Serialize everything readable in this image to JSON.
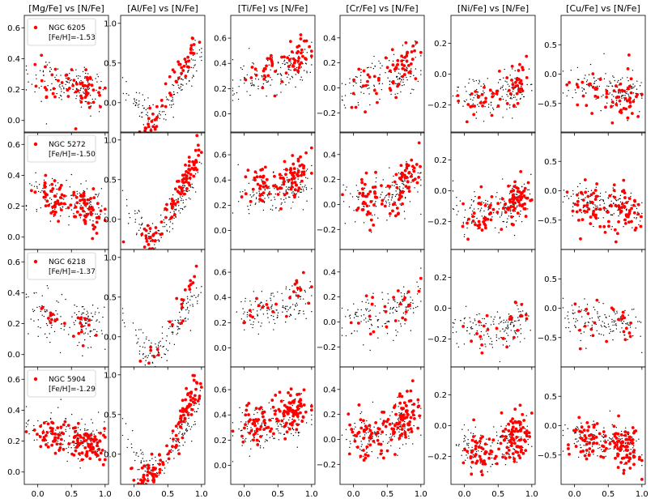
{
  "chart_data": {
    "type": "scatter",
    "layout": "4 rows x 6 columns grid of scatter panels",
    "xlim": [
      -0.2,
      1.05
    ],
    "xticks": [
      0.0,
      0.5,
      1.0
    ],
    "xtick_labels": [
      "0.0",
      "0.5",
      "1.0"
    ],
    "panel_titles": [
      "[Mg/Fe] vs [N/Fe]",
      "[Al/Fe] vs [N/Fe]",
      "[Ti/Fe] vs [N/Fe]",
      "[Cr/Fe] vs [N/Fe]",
      "[Ni/Fe] vs [N/Fe]",
      "[Cu/Fe] vs [N/Fe]"
    ],
    "series_styles": {
      "field": {
        "description": "field stars",
        "color": "#000000"
      },
      "cluster": {
        "description": "cluster stars",
        "color": "#ff0000"
      }
    },
    "rows": [
      {
        "cluster": "NGC 6205",
        "feh_label": "[Fe/H]=-1.53",
        "legend_position": "top-left"
      },
      {
        "cluster": "NGC 5272",
        "feh_label": "[Fe/H]=-1.50",
        "legend_position": "top-left"
      },
      {
        "cluster": "NGC 6218",
        "feh_label": "[Fe/H]=-1.37",
        "legend_position": "top-left"
      },
      {
        "cluster": "NGC 5904",
        "feh_label": "[Fe/H]=-1.29",
        "legend_position": "top-left"
      }
    ],
    "columns": [
      {
        "element": "Mg",
        "ylim": [
          -0.08,
          0.68
        ],
        "yticks": [
          0.0,
          0.2,
          0.4,
          0.6
        ],
        "ytick_labels": [
          "0.0",
          "0.2",
          "0.4",
          "0.6"
        ],
        "field_trend": [
          [
            -0.2,
            0.3
          ],
          [
            0.3,
            0.24
          ],
          [
            0.7,
            0.22
          ],
          [
            1.0,
            0.18
          ]
        ],
        "field_scatter": 0.07,
        "cluster_trend": [
          [
            0.0,
            0.26
          ],
          [
            1.0,
            0.15
          ]
        ],
        "cluster_scatter": 0.06
      },
      {
        "element": "Al",
        "ylim": [
          -0.38,
          1.1
        ],
        "yticks": [
          0.0,
          0.5,
          1.0
        ],
        "ytick_labels": [
          "0.0",
          "0.5",
          "1.0"
        ],
        "field_trend": [
          [
            -0.2,
            0.3
          ],
          [
            0.1,
            -0.1
          ],
          [
            0.3,
            -0.25
          ],
          [
            0.55,
            0.05
          ],
          [
            0.8,
            0.4
          ],
          [
            1.0,
            0.6
          ]
        ],
        "field_scatter": 0.1,
        "cluster_trend": [
          [
            0.0,
            -0.35
          ],
          [
            0.3,
            -0.25
          ],
          [
            0.55,
            0.15
          ],
          [
            0.8,
            0.6
          ],
          [
            1.0,
            0.9
          ]
        ],
        "cluster_scatter": 0.1
      },
      {
        "element": "Ti",
        "ylim": [
          -0.15,
          0.78
        ],
        "yticks": [
          0.0,
          0.2,
          0.4,
          0.6
        ],
        "ytick_labels": [
          "0.0",
          "0.2",
          "0.4",
          "0.6"
        ],
        "field_trend": [
          [
            -0.2,
            0.25
          ],
          [
            0.5,
            0.32
          ],
          [
            1.0,
            0.4
          ]
        ],
        "field_scatter": 0.08,
        "cluster_trend": [
          [
            0.0,
            0.3
          ],
          [
            1.0,
            0.48
          ]
        ],
        "cluster_scatter": 0.08
      },
      {
        "element": "Cr",
        "ylim": [
          -0.36,
          0.58
        ],
        "yticks": [
          -0.2,
          0.0,
          0.2,
          0.4
        ],
        "ytick_labels": [
          "−0.2",
          "0.0",
          "0.2",
          "0.4"
        ],
        "field_trend": [
          [
            -0.2,
            0.05
          ],
          [
            0.5,
            0.05
          ],
          [
            1.0,
            0.2
          ]
        ],
        "field_scatter": 0.09,
        "cluster_trend": [
          [
            0.0,
            0.0
          ],
          [
            0.5,
            0.05
          ],
          [
            1.0,
            0.3
          ]
        ],
        "cluster_scatter": 0.1
      },
      {
        "element": "Ni",
        "ylim": [
          -0.38,
          0.38
        ],
        "yticks": [
          -0.2,
          0.0,
          0.2
        ],
        "ytick_labels": [
          "−0.2",
          "0.0",
          "0.2"
        ],
        "field_trend": [
          [
            -0.2,
            -0.1
          ],
          [
            0.4,
            -0.15
          ],
          [
            1.0,
            -0.05
          ]
        ],
        "field_scatter": 0.07,
        "cluster_trend": [
          [
            0.0,
            -0.2
          ],
          [
            0.5,
            -0.15
          ],
          [
            1.0,
            0.0
          ]
        ],
        "cluster_scatter": 0.07
      },
      {
        "element": "Cu",
        "ylim": [
          -1.0,
          1.0
        ],
        "yticks": [
          -0.5,
          0.0,
          0.5
        ],
        "ytick_labels": [
          "−0.5",
          "0.0",
          "0.5"
        ],
        "field_trend": [
          [
            -0.2,
            -0.15
          ],
          [
            0.5,
            -0.25
          ],
          [
            1.0,
            -0.35
          ]
        ],
        "field_scatter": 0.15,
        "cluster_trend": [
          [
            0.0,
            -0.2
          ],
          [
            1.0,
            -0.4
          ]
        ],
        "cluster_scatter": 0.18
      }
    ],
    "points_per_panel": {
      "field": 140,
      "cluster": [
        60,
        100,
        25,
        130
      ]
    }
  }
}
